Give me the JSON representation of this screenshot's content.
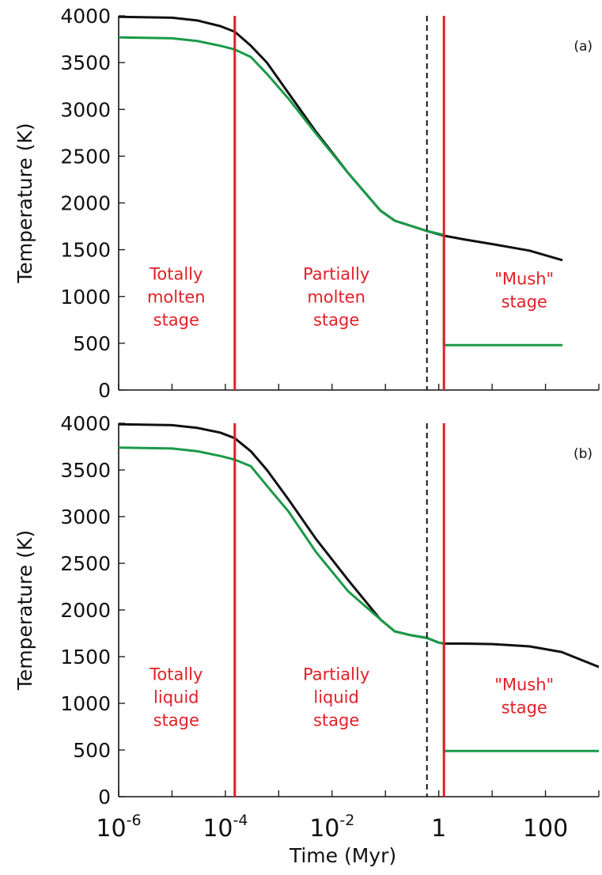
{
  "chart_data": {
    "type": "line",
    "x_scale": "log",
    "xlabel": "Time (Myr)",
    "xlim": [
      1e-06,
      1000
    ],
    "x_tick_values": [
      1e-06,
      0.0001,
      0.01,
      1,
      100
    ],
    "x_tick_labels": [
      {
        "base": "10",
        "exp": "-6"
      },
      {
        "base": "10",
        "exp": "-4"
      },
      {
        "base": "10",
        "exp": "-2"
      },
      {
        "base": "1",
        "exp": ""
      },
      {
        "base": "100",
        "exp": ""
      }
    ],
    "ylabel": "Temperature (K)",
    "ylim": [
      0,
      4000
    ],
    "y_ticks": [
      0,
      500,
      1000,
      1500,
      2000,
      2500,
      3000,
      3500,
      4000
    ],
    "colors": {
      "black_curve": "#111111",
      "green_curve": "#1a9a48",
      "stage_line": "#e21f26",
      "dashed_line": "#111111"
    },
    "panels": [
      {
        "tag": "(a)",
        "vertical_lines": {
          "red": [
            0.00015,
            1.25
          ],
          "dashed": [
            0.6
          ]
        },
        "region_labels": [
          {
            "lines": [
              "Totally",
              "molten",
              "stage"
            ],
            "x": 1.2e-05,
            "y": 1180
          },
          {
            "lines": [
              "Partially",
              "molten",
              "stage"
            ],
            "x": 0.012,
            "y": 1180
          },
          {
            "lines": [
              "\"Mush\"",
              "stage"
            ],
            "x": 40,
            "y": 1130
          }
        ],
        "series": [
          {
            "color": "black",
            "x": [
              1e-06,
              1e-05,
              3e-05,
              8e-05,
              0.00015,
              0.0003,
              0.0006,
              0.0015,
              0.005,
              0.02,
              0.08,
              0.15,
              0.3,
              0.6,
              1.25,
              3,
              10,
              50,
              200
            ],
            "y": [
              3990,
              3980,
              3950,
              3890,
              3830,
              3680,
              3500,
              3180,
              2760,
              2320,
              1920,
              1810,
              1755,
              1700,
              1650,
              1610,
              1560,
              1490,
              1390
            ]
          },
          {
            "color": "green",
            "x": [
              1e-06,
              1e-05,
              3e-05,
              8e-05,
              0.00015,
              0.0003,
              0.0006,
              0.0015,
              0.005,
              0.02,
              0.08,
              0.15,
              0.3,
              0.6,
              1.2
            ],
            "y": [
              3770,
              3760,
              3730,
              3680,
              3640,
              3560,
              3380,
              3120,
              2740,
              2320,
              1920,
              1810,
              1755,
              1700,
              1660
            ]
          },
          {
            "color": "green",
            "x": [
              1.25,
              1.25,
              200
            ],
            "y": [
              1650,
              480,
              480
            ]
          }
        ]
      },
      {
        "tag": "(b)",
        "vertical_lines": {
          "red": [
            0.00015,
            1.25
          ],
          "dashed": [
            0.6
          ]
        },
        "region_labels": [
          {
            "lines": [
              "Totally",
              "liquid",
              "stage"
            ],
            "x": 1.2e-05,
            "y": 1250
          },
          {
            "lines": [
              "Partially",
              "liquid",
              "stage"
            ],
            "x": 0.012,
            "y": 1250
          },
          {
            "lines": [
              "\"Mush\"",
              "stage"
            ],
            "x": 40,
            "y": 1140
          }
        ],
        "series": [
          {
            "color": "black",
            "x": [
              1e-06,
              1e-05,
              3e-05,
              8e-05,
              0.00015,
              0.0003,
              0.0006,
              0.0015,
              0.005,
              0.02,
              0.08,
              0.15,
              0.3,
              0.6,
              1.0,
              1.25,
              3,
              10,
              50,
              200,
              1000
            ],
            "y": [
              3990,
              3980,
              3950,
              3900,
              3840,
              3700,
              3500,
              3190,
              2760,
              2320,
              1900,
              1770,
              1730,
              1700,
              1650,
              1640,
              1640,
              1635,
              1610,
              1550,
              1390
            ]
          },
          {
            "color": "green",
            "x": [
              1e-06,
              1e-05,
              3e-05,
              8e-05,
              0.00015,
              0.0003,
              0.0006,
              0.0015,
              0.005,
              0.02,
              0.08,
              0.15,
              0.3,
              0.6,
              1.0,
              1.2
            ],
            "y": [
              3740,
              3730,
              3700,
              3650,
              3610,
              3540,
              3330,
              3060,
              2620,
              2200,
              1900,
              1770,
              1730,
              1700,
              1650,
              1640
            ]
          },
          {
            "color": "green",
            "x": [
              1.25,
              1.25,
              1000
            ],
            "y": [
              1640,
              490,
              490
            ]
          }
        ]
      }
    ]
  }
}
